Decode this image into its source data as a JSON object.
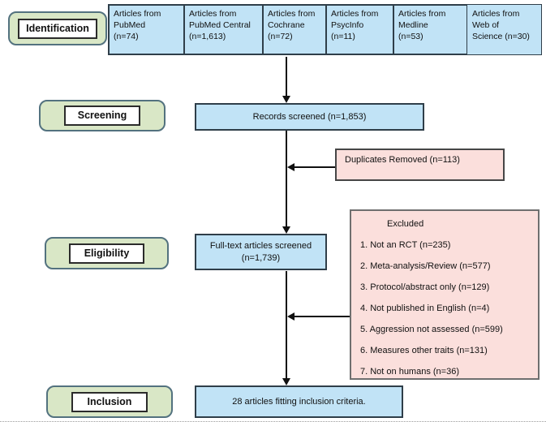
{
  "stages": {
    "identification": "Identification",
    "screening": "Screening",
    "eligibility": "Eligibility",
    "inclusion": "Inclusion"
  },
  "sources": [
    {
      "text": "Articles from\nPubMed\n(n=74)"
    },
    {
      "text": "Articles from\nPubMed Central\n(n=1,613)"
    },
    {
      "text": "Articles from\nCochrane\n(n=72)"
    },
    {
      "text": "Articles from\nPsycInfo\n(n=11)"
    },
    {
      "text": "Articles from\nMedline\n(n=53)"
    },
    {
      "text": "Articles from\nWeb of\nScience (n=30)"
    }
  ],
  "flow": {
    "records_screened": "Records screened (n=1,853)",
    "duplicates_removed": "Duplicates Removed (n=113)",
    "fulltext_screened": "Full-text articles screened\n(n=1,739)",
    "included": "28 articles fitting inclusion criteria."
  },
  "excluded": {
    "title": "Excluded",
    "items": [
      "1. Not an RCT (n=235)",
      "2. Meta-analysis/Review (n=577)",
      "3. Protocol/abstract only (n=129)",
      "4. Not published in English (n=4)",
      "5. Aggression not assessed (n=599)",
      "6. Measures other traits (n=131)",
      "7. Not on humans (n=36)"
    ]
  },
  "colors": {
    "box_blue": "#c1e3f6",
    "box_pink": "#fbdfdc",
    "label_green": "#d9e7c6",
    "box_border": "#2f3e49",
    "arrow": "#101010"
  }
}
